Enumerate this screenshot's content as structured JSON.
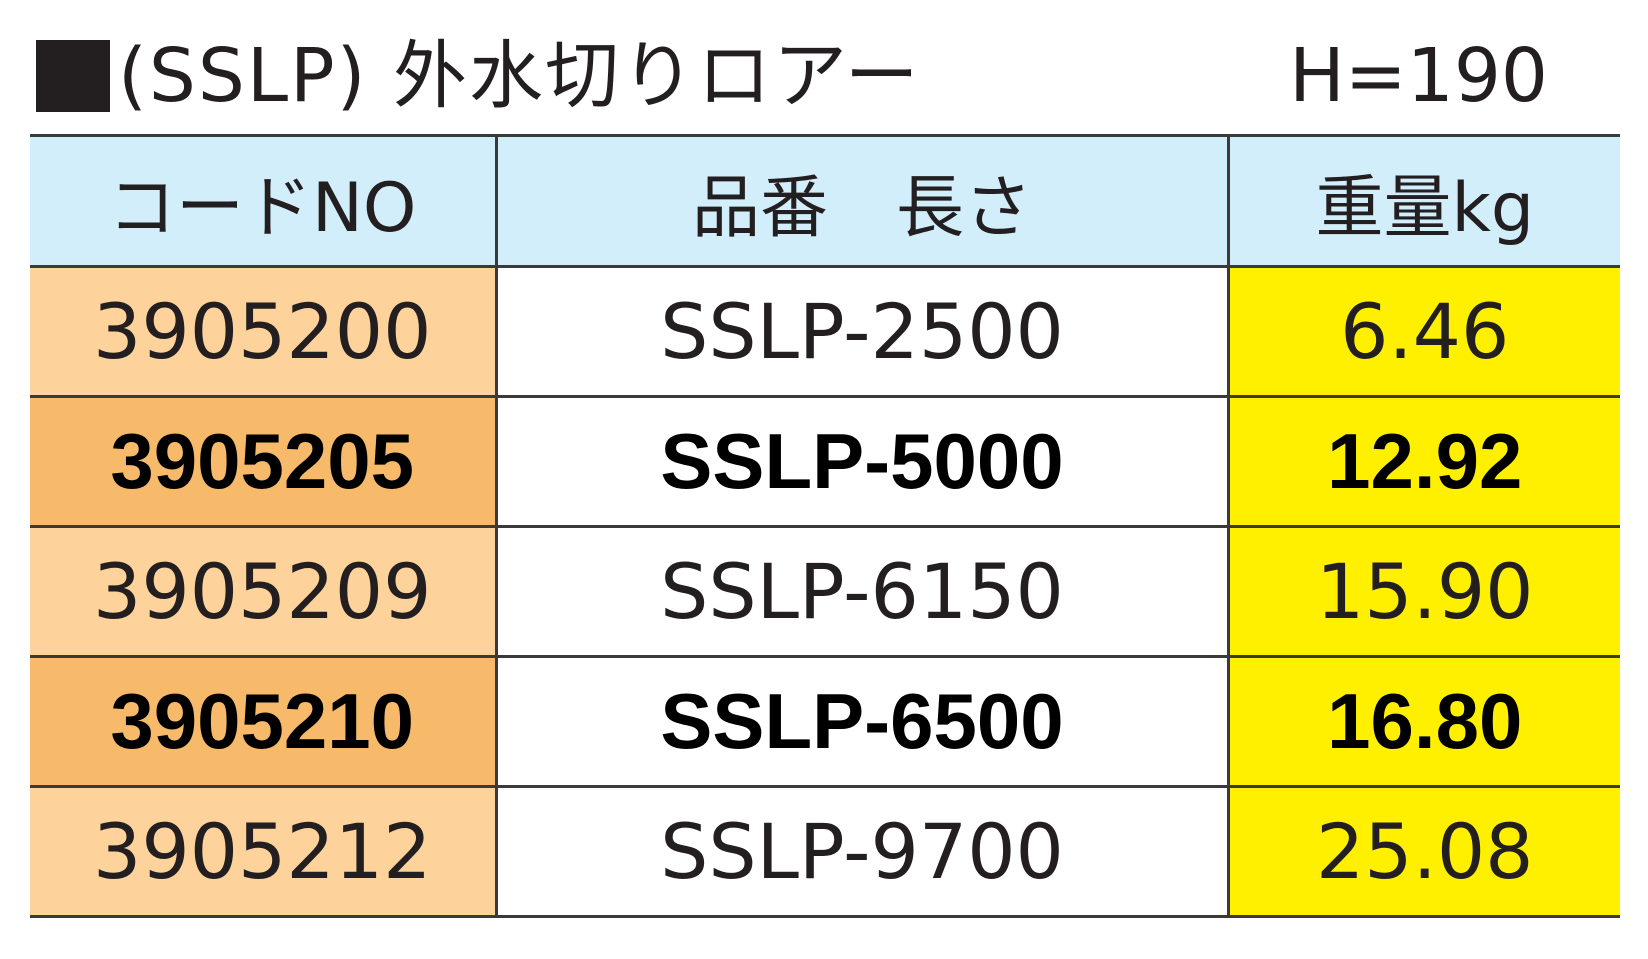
{
  "title": {
    "text": "(SSLP) 外水切りロアー",
    "height_label": "H=190"
  },
  "table": {
    "headers": [
      "コードNO",
      "品番　長さ",
      "重量kg"
    ],
    "rows": [
      {
        "code": "3905200",
        "product": "SSLP-2500",
        "weight": "6.46",
        "emphasis": false
      },
      {
        "code": "3905205",
        "product": "SSLP-5000",
        "weight": "12.92",
        "emphasis": true
      },
      {
        "code": "3905209",
        "product": "SSLP-6150",
        "weight": "15.90",
        "emphasis": false
      },
      {
        "code": "3905210",
        "product": "SSLP-6500",
        "weight": "16.80",
        "emphasis": true
      },
      {
        "code": "3905212",
        "product": "SSLP-9700",
        "weight": "25.08",
        "emphasis": false
      }
    ]
  },
  "colors": {
    "header_bg": "#d2eefa",
    "code_bg": "#fdd29b",
    "code_bg_emphasis": "#f7b96a",
    "weight_bg": "#fff000",
    "text": "#231f20"
  }
}
